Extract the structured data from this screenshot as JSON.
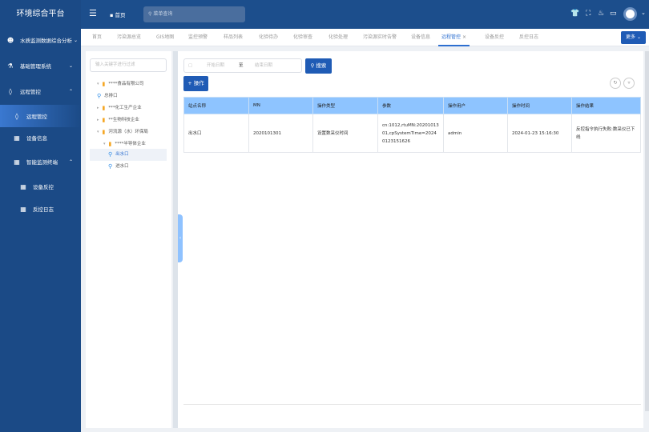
{
  "app": {
    "title": "环境综合平台"
  },
  "sidebar": {
    "items": [
      {
        "label": "水质监测数据综合分析",
        "icon": "user-group-icon",
        "chevron": "⌄"
      },
      {
        "label": "基础管理系统",
        "icon": "flask-icon",
        "chevron": "⌄"
      },
      {
        "label": "远程管控",
        "icon": "drop-icon",
        "chevron": "⌃"
      },
      {
        "label": "远程管控",
        "icon": "drop-icon",
        "active": true
      },
      {
        "label": "设备信息",
        "icon": "grid-icon"
      },
      {
        "label": "智能监测终端",
        "icon": "grid-icon",
        "chevron": "⌃"
      },
      {
        "label": "设备反控",
        "icon": "grid-icon"
      },
      {
        "label": "反控日志",
        "icon": "grid-icon"
      }
    ]
  },
  "header": {
    "home_label": "首页",
    "search_placeholder": "菜单查询",
    "icons": [
      "shirt-icon",
      "expand-icon",
      "flame-icon",
      "monitor-icon",
      "avatar"
    ]
  },
  "tabs": {
    "items": [
      "首页",
      "污染源总览",
      "GIS地图",
      "监控预警",
      "样品列表",
      "化验待办",
      "化验审查",
      "化验处理",
      "污染源实时告警",
      "设备信息",
      "远程管控",
      "设备反控",
      "反控日志"
    ],
    "active": "远程管控",
    "close": "×",
    "more_label": "更多"
  },
  "tree": {
    "filter_placeholder": "输入关键字进行过滤",
    "nodes": [
      {
        "label": "****食品有限公司",
        "type": "folder",
        "expanded": true
      },
      {
        "label": "总排口",
        "type": "point"
      },
      {
        "label": "***化工生产企业",
        "type": "folder"
      },
      {
        "label": "**生物科技企业",
        "type": "folder"
      },
      {
        "label": "河流源（水）环保局",
        "type": "folder",
        "expanded": true
      },
      {
        "label": "****半导体企业",
        "type": "folder",
        "expanded": true
      },
      {
        "label": "出水口",
        "type": "point",
        "selected": true
      },
      {
        "label": "进水口",
        "type": "point"
      }
    ]
  },
  "filters": {
    "start_placeholder": "开始日期",
    "separator": "至",
    "end_placeholder": "结束日期",
    "search_label": "搜索",
    "add_label": "+ 操作"
  },
  "table": {
    "columns": [
      "站点名称",
      "MN",
      "操作类型",
      "参数",
      "操作用户",
      "操作时间",
      "操作结果"
    ],
    "rows": [
      [
        "出水口",
        "2020101301",
        "设置数采仪时间",
        "cn:1012,rtuMN:2020101301,cpSystemTime=20240123151626",
        "admin",
        "2024-01-23 15:16:30",
        "反控指令执行失败:数采仪已下线"
      ]
    ]
  },
  "colors": {
    "sidebar": "#1b4a86",
    "accent": "#1f5bb5",
    "table_header": "#8ec4ff"
  }
}
